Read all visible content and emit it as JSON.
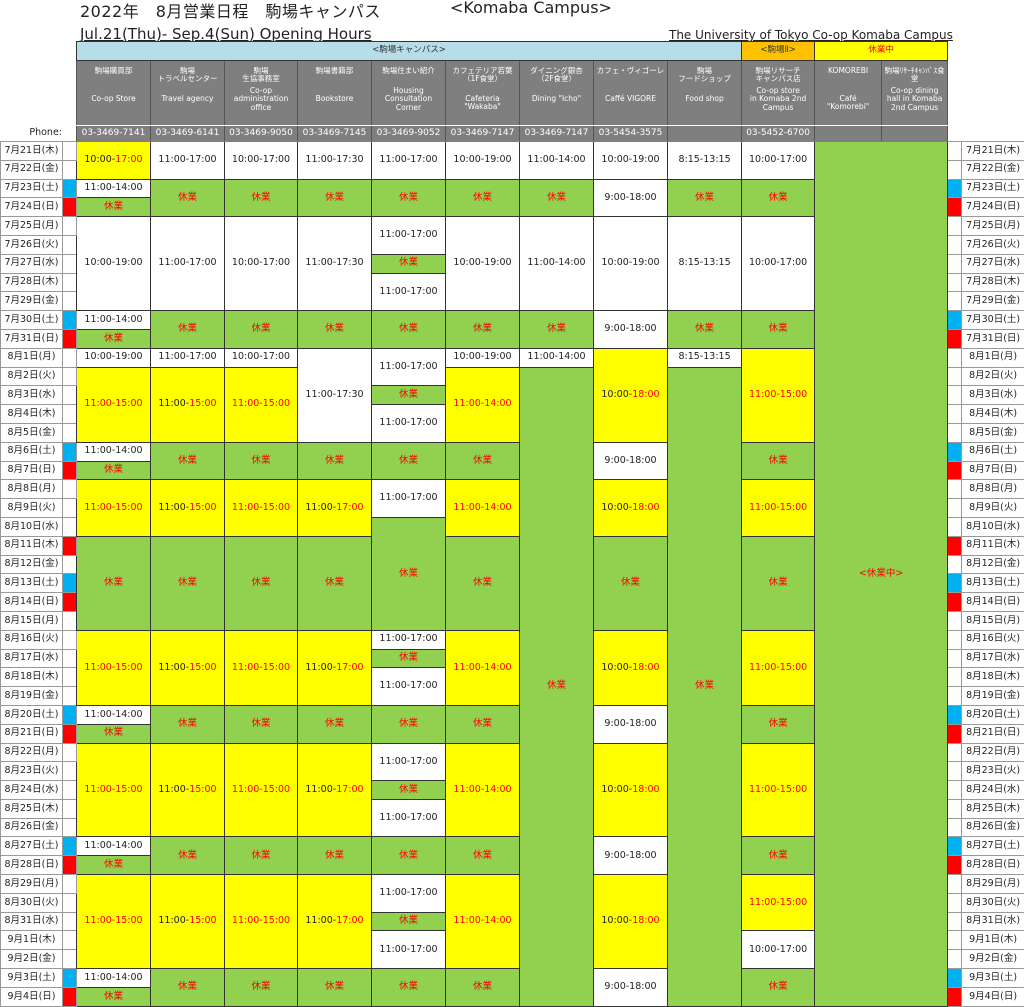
{
  "header": {
    "title": "2022年　8月営業日程　駒場キャンパス",
    "title_en": "<Komaba Campus>",
    "subtitle": "Jul.21(Thu)- Sep.4(Sun) Opening Hours",
    "org": "The University of Tokyo Co-op  Komaba Campus",
    "phone_label": "Phone:",
    "groups": [
      {
        "label": "<駒場キャンパス>",
        "color": "#b7dde8",
        "text_color": "#333333"
      },
      {
        "label": "<駒場Ⅱ>",
        "color": "#ffc000",
        "text_color": "#333333"
      },
      {
        "label": "休業中",
        "color": "#ffff00",
        "text_color": "#ff0000"
      }
    ]
  },
  "colors": {
    "open": "#ffffff",
    "reduced": "#ffff00",
    "closed": "#92d050",
    "saturday": "#00b0f0",
    "holiday": "#ff0000",
    "header": "#7f7f7f",
    "alert_text": "#ff0000"
  },
  "dates": [
    "7月21日(木)",
    "7月22日(金)",
    "7月23日(土)",
    "7月24日(日)",
    "7月25日(月)",
    "7月26日(火)",
    "7月27日(水)",
    "7月28日(木)",
    "7月29日(金)",
    "7月30日(土)",
    "7月31日(日)",
    "8月1日(月)",
    "8月2日(火)",
    "8月3日(水)",
    "8月4日(木)",
    "8月5日(金)",
    "8月6日(土)",
    "8月7日(日)",
    "8月8日(月)",
    "8月9日(火)",
    "8月10日(水)",
    "8月11日(木)",
    "8月12日(金)",
    "8月13日(土)",
    "8月14日(日)",
    "8月15日(月)",
    "8月16日(火)",
    "8月17日(水)",
    "8月18日(木)",
    "8月19日(金)",
    "8月20日(土)",
    "8月21日(日)",
    "8月22日(月)",
    "8月23日(火)",
    "8月24日(水)",
    "8月25日(木)",
    "8月26日(金)",
    "8月27日(土)",
    "8月28日(日)",
    "8月29日(月)",
    "8月30日(火)",
    "8月31日(水)",
    "9月1日(木)",
    "9月2日(金)",
    "9月3日(土)",
    "9月4日(日)"
  ],
  "day_markers": [
    "",
    "",
    "sat",
    "sun",
    "",
    "",
    "",
    "",
    "",
    "sat",
    "sun",
    "",
    "",
    "",
    "",
    "",
    "sat",
    "sun",
    "",
    "",
    "",
    "sun",
    "",
    "sat",
    "sun",
    "",
    "",
    "",
    "",
    "",
    "sat",
    "sun",
    "",
    "",
    "",
    "",
    "",
    "sat",
    "sun",
    "",
    "",
    "",
    "",
    "",
    "sat",
    "sun"
  ],
  "closed_label": "休業",
  "closed_all_label": "<休業中>",
  "shops": [
    {
      "jp": "駒場購買部",
      "en": "Co-op Store",
      "phone": "03-3469-7141",
      "segments": [
        {
          "days": 2,
          "text": "10:00-17:00",
          "kind": "yp"
        },
        {
          "days": 1,
          "text": "11:00-14:00",
          "kind": "w"
        },
        {
          "days": 1,
          "text": "休業",
          "kind": "g"
        },
        {
          "days": 5,
          "text": "10:00-19:00",
          "kind": "w"
        },
        {
          "days": 1,
          "text": "11:00-14:00",
          "kind": "w"
        },
        {
          "days": 1,
          "text": "休業",
          "kind": "g"
        },
        {
          "days": 1,
          "text": "10:00-19:00",
          "kind": "w"
        },
        {
          "days": 4,
          "text": "11:00-15:00",
          "kind": "y"
        },
        {
          "days": 1,
          "text": "11:00-14:00",
          "kind": "w"
        },
        {
          "days": 1,
          "text": "休業",
          "kind": "g"
        },
        {
          "days": 3,
          "text": "11:00-15:00",
          "kind": "y"
        },
        {
          "days": 5,
          "text": "休業",
          "kind": "g"
        },
        {
          "days": 4,
          "text": "11:00-15:00",
          "kind": "y"
        },
        {
          "days": 1,
          "text": "11:00-14:00",
          "kind": "w"
        },
        {
          "days": 1,
          "text": "休業",
          "kind": "g"
        },
        {
          "days": 5,
          "text": "11:00-15:00",
          "kind": "y"
        },
        {
          "days": 1,
          "text": "11:00-14:00",
          "kind": "w"
        },
        {
          "days": 1,
          "text": "休業",
          "kind": "g"
        },
        {
          "days": 5,
          "text": "11:00-15:00",
          "kind": "y"
        },
        {
          "days": 1,
          "text": "11:00-14:00",
          "kind": "w"
        },
        {
          "days": 1,
          "text": "休業",
          "kind": "g"
        }
      ]
    },
    {
      "jp": "駒場\nトラベルセンター",
      "en": "Travel agency",
      "phone": "03-3469-6141",
      "segments": [
        {
          "days": 2,
          "text": "11:00-17:00",
          "kind": "w"
        },
        {
          "days": 2,
          "text": "休業",
          "kind": "g"
        },
        {
          "days": 5,
          "text": "11:00-17:00",
          "kind": "w"
        },
        {
          "days": 2,
          "text": "休業",
          "kind": "g"
        },
        {
          "days": 1,
          "text": "11:00-17:00",
          "kind": "w"
        },
        {
          "days": 4,
          "text": "11:00-15:00",
          "kind": "yp"
        },
        {
          "days": 2,
          "text": "休業",
          "kind": "g"
        },
        {
          "days": 3,
          "text": "11:00-15:00",
          "kind": "yp"
        },
        {
          "days": 5,
          "text": "休業",
          "kind": "g"
        },
        {
          "days": 4,
          "text": "11:00-15:00",
          "kind": "yp"
        },
        {
          "days": 2,
          "text": "休業",
          "kind": "g"
        },
        {
          "days": 5,
          "text": "11:00-15:00",
          "kind": "yp"
        },
        {
          "days": 2,
          "text": "休業",
          "kind": "g"
        },
        {
          "days": 5,
          "text": "11:00-15:00",
          "kind": "yp"
        },
        {
          "days": 2,
          "text": "休業",
          "kind": "g"
        }
      ]
    },
    {
      "jp": "駒場\n生協事務室",
      "en": "Co-op\nadministration\noffice",
      "phone": "03-3469-9050",
      "segments": [
        {
          "days": 2,
          "text": "10:00-17:00",
          "kind": "w"
        },
        {
          "days": 2,
          "text": "休業",
          "kind": "g"
        },
        {
          "days": 5,
          "text": "10:00-17:00",
          "kind": "w"
        },
        {
          "days": 2,
          "text": "休業",
          "kind": "g"
        },
        {
          "days": 1,
          "text": "10:00-17:00",
          "kind": "w"
        },
        {
          "days": 4,
          "text": "11:00-15:00",
          "kind": "y"
        },
        {
          "days": 2,
          "text": "休業",
          "kind": "g"
        },
        {
          "days": 3,
          "text": "11:00-15:00",
          "kind": "y"
        },
        {
          "days": 5,
          "text": "休業",
          "kind": "g"
        },
        {
          "days": 4,
          "text": "11:00-15:00",
          "kind": "y"
        },
        {
          "days": 2,
          "text": "休業",
          "kind": "g"
        },
        {
          "days": 5,
          "text": "11:00-15:00",
          "kind": "y"
        },
        {
          "days": 2,
          "text": "休業",
          "kind": "g"
        },
        {
          "days": 5,
          "text": "11:00-15:00",
          "kind": "y"
        },
        {
          "days": 2,
          "text": "休業",
          "kind": "g"
        }
      ]
    },
    {
      "jp": "駒場書籍部",
      "en": "Bookstore",
      "phone": "03-3469-7145",
      "segments": [
        {
          "days": 2,
          "text": "11:00-17:30",
          "kind": "w"
        },
        {
          "days": 2,
          "text": "休業",
          "kind": "g"
        },
        {
          "days": 5,
          "text": "11:00-17:30",
          "kind": "w"
        },
        {
          "days": 2,
          "text": "休業",
          "kind": "g"
        },
        {
          "days": 5,
          "text": "11:00-17:30",
          "kind": "w"
        },
        {
          "days": 2,
          "text": "休業",
          "kind": "g"
        },
        {
          "days": 3,
          "text": "11:00-17:00",
          "kind": "yp"
        },
        {
          "days": 5,
          "text": "休業",
          "kind": "g"
        },
        {
          "days": 4,
          "text": "11:00-17:00",
          "kind": "yp"
        },
        {
          "days": 2,
          "text": "休業",
          "kind": "g"
        },
        {
          "days": 5,
          "text": "11:00-17:00",
          "kind": "yp"
        },
        {
          "days": 2,
          "text": "休業",
          "kind": "g"
        },
        {
          "days": 5,
          "text": "11:00-17:00",
          "kind": "yp"
        },
        {
          "days": 2,
          "text": "休業",
          "kind": "g"
        }
      ]
    },
    {
      "jp": "駒場住まい紹介",
      "en": "Housing\nConsultation\nCorner",
      "phone": "03-3469-9052",
      "segments": [
        {
          "days": 2,
          "text": "11:00-17:00",
          "kind": "w"
        },
        {
          "days": 2,
          "text": "休業",
          "kind": "g"
        },
        {
          "days": 2,
          "text": "11:00-17:00",
          "kind": "w"
        },
        {
          "days": 1,
          "text": "休業",
          "kind": "g"
        },
        {
          "days": 2,
          "text": "11:00-17:00",
          "kind": "w"
        },
        {
          "days": 2,
          "text": "休業",
          "kind": "g"
        },
        {
          "days": 2,
          "text": "11:00-17:00",
          "kind": "w"
        },
        {
          "days": 1,
          "text": "休業",
          "kind": "g"
        },
        {
          "days": 2,
          "text": "11:00-17:00",
          "kind": "w"
        },
        {
          "days": 2,
          "text": "休業",
          "kind": "g"
        },
        {
          "days": 2,
          "text": "11:00-17:00",
          "kind": "w"
        },
        {
          "days": 6,
          "text": "休業",
          "kind": "g"
        },
        {
          "days": 1,
          "text": "11:00-17:00",
          "kind": "w"
        },
        {
          "days": 1,
          "text": "休業",
          "kind": "g"
        },
        {
          "days": 2,
          "text": "11:00-17:00",
          "kind": "w"
        },
        {
          "days": 2,
          "text": "休業",
          "kind": "g"
        },
        {
          "days": 2,
          "text": "11:00-17:00",
          "kind": "w"
        },
        {
          "days": 1,
          "text": "休業",
          "kind": "g"
        },
        {
          "days": 2,
          "text": "11:00-17:00",
          "kind": "w"
        },
        {
          "days": 2,
          "text": "休業",
          "kind": "g"
        },
        {
          "days": 2,
          "text": "11:00-17:00",
          "kind": "w"
        },
        {
          "days": 1,
          "text": "休業",
          "kind": "g"
        },
        {
          "days": 2,
          "text": "11:00-17:00",
          "kind": "w"
        },
        {
          "days": 2,
          "text": "休業",
          "kind": "g"
        }
      ]
    },
    {
      "jp": "カフェテリア若葉\n（1F食堂）",
      "en": "Cafeteria\n\"Wakaba\"",
      "phone": "03-3469-7147",
      "segments": [
        {
          "days": 2,
          "text": "10:00-19:00",
          "kind": "w"
        },
        {
          "days": 2,
          "text": "休業",
          "kind": "g"
        },
        {
          "days": 5,
          "text": "10:00-19:00",
          "kind": "w"
        },
        {
          "days": 2,
          "text": "休業",
          "kind": "g"
        },
        {
          "days": 1,
          "text": "10:00-19:00",
          "kind": "w"
        },
        {
          "days": 4,
          "text": "11:00-14:00",
          "kind": "y"
        },
        {
          "days": 2,
          "text": "休業",
          "kind": "g"
        },
        {
          "days": 3,
          "text": "11:00-14:00",
          "kind": "y"
        },
        {
          "days": 5,
          "text": "休業",
          "kind": "g"
        },
        {
          "days": 4,
          "text": "11:00-14:00",
          "kind": "y"
        },
        {
          "days": 2,
          "text": "休業",
          "kind": "g"
        },
        {
          "days": 5,
          "text": "11:00-14:00",
          "kind": "y"
        },
        {
          "days": 2,
          "text": "休業",
          "kind": "g"
        },
        {
          "days": 5,
          "text": "11:00-14:00",
          "kind": "y"
        },
        {
          "days": 2,
          "text": "休業",
          "kind": "g"
        }
      ]
    },
    {
      "jp": "ダイニング銀杏\n（2F食堂）",
      "en": "Dining \"Icho\"",
      "phone": "03-3469-7147",
      "segments": [
        {
          "days": 2,
          "text": "11:00-14:00",
          "kind": "w"
        },
        {
          "days": 2,
          "text": "休業",
          "kind": "g"
        },
        {
          "days": 5,
          "text": "11:00-14:00",
          "kind": "w"
        },
        {
          "days": 2,
          "text": "休業",
          "kind": "g"
        },
        {
          "days": 1,
          "text": "11:00-14:00",
          "kind": "w"
        },
        {
          "days": 34,
          "text": "休業",
          "kind": "g"
        }
      ]
    },
    {
      "jp": "カフェ・ヴィゴーレ",
      "en": "Caffé VIGORE",
      "phone": "03-5454-3575",
      "segments": [
        {
          "days": 2,
          "text": "10:00-19:00",
          "kind": "w"
        },
        {
          "days": 2,
          "text": "9:00-18:00",
          "kind": "w"
        },
        {
          "days": 5,
          "text": "10:00-19:00",
          "kind": "w"
        },
        {
          "days": 2,
          "text": "9:00-18:00",
          "kind": "w"
        },
        {
          "days": 5,
          "text": "10:00-18:00",
          "kind": "yp"
        },
        {
          "days": 2,
          "text": "9:00-18:00",
          "kind": "w"
        },
        {
          "days": 3,
          "text": "10:00-18:00",
          "kind": "yp"
        },
        {
          "days": 5,
          "text": "休業",
          "kind": "g"
        },
        {
          "days": 4,
          "text": "10:00-18:00",
          "kind": "yp"
        },
        {
          "days": 2,
          "text": "9:00-18:00",
          "kind": "w"
        },
        {
          "days": 5,
          "text": "10:00-18:00",
          "kind": "yp"
        },
        {
          "days": 2,
          "text": "9:00-18:00",
          "kind": "w"
        },
        {
          "days": 5,
          "text": "10:00-18:00",
          "kind": "yp"
        },
        {
          "days": 2,
          "text": "9:00-18:00",
          "kind": "w"
        }
      ]
    },
    {
      "jp": "駒場\nフードショップ",
      "en": "Food shop",
      "phone": "",
      "segments": [
        {
          "days": 2,
          "text": "8:15-13:15",
          "kind": "w"
        },
        {
          "days": 2,
          "text": "休業",
          "kind": "g"
        },
        {
          "days": 5,
          "text": "8:15-13:15",
          "kind": "w"
        },
        {
          "days": 2,
          "text": "休業",
          "kind": "g"
        },
        {
          "days": 1,
          "text": "8:15-13:15",
          "kind": "w"
        },
        {
          "days": 34,
          "text": "休業",
          "kind": "g"
        }
      ]
    },
    {
      "jp": "駒場リサーチ\nキャンパス店",
      "en": "Co-op store\nin Komaba 2nd\nCampus",
      "phone": "03-5452-6700",
      "segments": [
        {
          "days": 2,
          "text": "10:00-17:00",
          "kind": "w"
        },
        {
          "days": 2,
          "text": "休業",
          "kind": "g"
        },
        {
          "days": 5,
          "text": "10:00-17:00",
          "kind": "w"
        },
        {
          "days": 2,
          "text": "休業",
          "kind": "g"
        },
        {
          "days": 5,
          "text": "11:00-15:00",
          "kind": "y"
        },
        {
          "days": 2,
          "text": "休業",
          "kind": "g"
        },
        {
          "days": 3,
          "text": "11:00-15:00",
          "kind": "y"
        },
        {
          "days": 5,
          "text": "休業",
          "kind": "g"
        },
        {
          "days": 4,
          "text": "11:00-15:00",
          "kind": "y"
        },
        {
          "days": 2,
          "text": "休業",
          "kind": "g"
        },
        {
          "days": 5,
          "text": "11:00-15:00",
          "kind": "y"
        },
        {
          "days": 2,
          "text": "休業",
          "kind": "g"
        },
        {
          "days": 3,
          "text": "11:00-15:00",
          "kind": "y"
        },
        {
          "days": 2,
          "text": "10:00-17:00",
          "kind": "w"
        },
        {
          "days": 2,
          "text": "休業",
          "kind": "g"
        }
      ]
    },
    {
      "jp": "KOMOREBI",
      "en": "Café\n\"Komorebi\"",
      "phone": "",
      "segments": []
    },
    {
      "jp": "駒場ﾘｻｰﾁｷｬﾝﾊﾟｽ食堂",
      "en": "Co-op dining\nhall in Komaba\n2nd Campus",
      "phone": "",
      "segments": []
    }
  ]
}
